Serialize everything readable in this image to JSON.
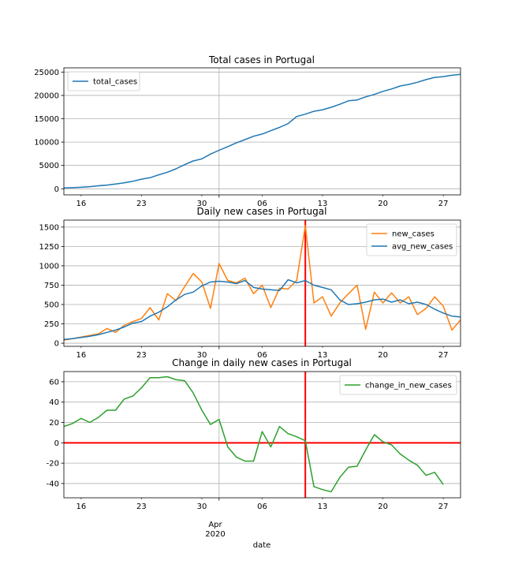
{
  "figure": {
    "xlabel": "date",
    "x_month_label": "Apr",
    "x_year_label": "2020"
  },
  "chart_data": [
    {
      "type": "line",
      "title": "Total cases in Portugal",
      "xlabel": "date",
      "ylabel": "",
      "x_range": [
        "2020-03-14",
        "2020-04-29"
      ],
      "ylim": [
        -1300,
        25900
      ],
      "yticks": [
        0,
        5000,
        10000,
        15000,
        20000,
        25000
      ],
      "xtick_labels": [
        "16",
        "23",
        "30",
        "06",
        "13",
        "20",
        "27"
      ],
      "grid": true,
      "legend": "top-left",
      "series": [
        {
          "name": "total_cases",
          "color": "#1f77b4",
          "x": [
            "2020-03-14",
            "2020-03-15",
            "2020-03-16",
            "2020-03-17",
            "2020-03-18",
            "2020-03-19",
            "2020-03-20",
            "2020-03-21",
            "2020-03-22",
            "2020-03-23",
            "2020-03-24",
            "2020-03-25",
            "2020-03-26",
            "2020-03-27",
            "2020-03-28",
            "2020-03-29",
            "2020-03-30",
            "2020-03-31",
            "2020-04-01",
            "2020-04-02",
            "2020-04-03",
            "2020-04-04",
            "2020-04-05",
            "2020-04-06",
            "2020-04-07",
            "2020-04-08",
            "2020-04-09",
            "2020-04-10",
            "2020-04-11",
            "2020-04-12",
            "2020-04-13",
            "2020-04-14",
            "2020-04-15",
            "2020-04-16",
            "2020-04-17",
            "2020-04-18",
            "2020-04-19",
            "2020-04-20",
            "2020-04-21",
            "2020-04-22",
            "2020-04-23",
            "2020-04-24",
            "2020-04-25",
            "2020-04-26",
            "2020-04-27",
            "2020-04-28",
            "2020-04-29"
          ],
          "values": [
            170,
            245,
            330,
            450,
            640,
            790,
            1020,
            1280,
            1600,
            2060,
            2360,
            2995,
            3545,
            4270,
            5170,
            5960,
            6410,
            7440,
            8250,
            9030,
            9840,
            10520,
            11260,
            11730,
            12440,
            13140,
            13950,
            15470,
            15990,
            16590,
            16930,
            17450,
            18090,
            18840,
            19020,
            19690,
            20200,
            20860,
            21380,
            22010,
            22350,
            22800,
            23390,
            23860,
            24030,
            24320,
            24510
          ]
        }
      ]
    },
    {
      "type": "line",
      "title": "Daily new cases in Portugal",
      "xlabel": "date",
      "ylabel": "",
      "x_range": [
        "2020-03-14",
        "2020-04-29"
      ],
      "ylim": [
        -40,
        1590
      ],
      "yticks": [
        0,
        250,
        500,
        750,
        1000,
        1250,
        1500
      ],
      "xtick_labels": [
        "16",
        "23",
        "30",
        "06",
        "13",
        "20",
        "27"
      ],
      "grid": true,
      "legend": "top-right",
      "vertical_marker": "2020-04-11",
      "series": [
        {
          "name": "new_cases",
          "color": "#ff7f0e",
          "x": [
            "2020-03-14",
            "2020-03-15",
            "2020-03-16",
            "2020-03-17",
            "2020-03-18",
            "2020-03-19",
            "2020-03-20",
            "2020-03-21",
            "2020-03-22",
            "2020-03-23",
            "2020-03-24",
            "2020-03-25",
            "2020-03-26",
            "2020-03-27",
            "2020-03-28",
            "2020-03-29",
            "2020-03-30",
            "2020-03-31",
            "2020-04-01",
            "2020-04-02",
            "2020-04-03",
            "2020-04-04",
            "2020-04-05",
            "2020-04-06",
            "2020-04-07",
            "2020-04-08",
            "2020-04-09",
            "2020-04-10",
            "2020-04-11",
            "2020-04-12",
            "2020-04-13",
            "2020-04-14",
            "2020-04-15",
            "2020-04-16",
            "2020-04-17",
            "2020-04-18",
            "2020-04-19",
            "2020-04-20",
            "2020-04-21",
            "2020-04-22",
            "2020-04-23",
            "2020-04-24",
            "2020-04-25",
            "2020-04-26",
            "2020-04-27",
            "2020-04-28",
            "2020-04-29"
          ],
          "values": [
            40,
            60,
            80,
            100,
            120,
            190,
            140,
            230,
            280,
            320,
            460,
            300,
            640,
            550,
            730,
            900,
            790,
            450,
            1030,
            810,
            780,
            840,
            640,
            750,
            460,
            710,
            700,
            810,
            1520,
            520,
            600,
            350,
            520,
            640,
            750,
            180,
            660,
            520,
            650,
            520,
            600,
            370,
            450,
            600,
            480,
            170,
            300
          ]
        },
        {
          "name": "avg_new_cases",
          "color": "#1f77b4",
          "x": [
            "2020-03-14",
            "2020-03-15",
            "2020-03-16",
            "2020-03-17",
            "2020-03-18",
            "2020-03-19",
            "2020-03-20",
            "2020-03-21",
            "2020-03-22",
            "2020-03-23",
            "2020-03-24",
            "2020-03-25",
            "2020-03-26",
            "2020-03-27",
            "2020-03-28",
            "2020-03-29",
            "2020-03-30",
            "2020-03-31",
            "2020-04-01",
            "2020-04-02",
            "2020-04-03",
            "2020-04-04",
            "2020-04-05",
            "2020-04-06",
            "2020-04-07",
            "2020-04-08",
            "2020-04-09",
            "2020-04-10",
            "2020-04-11",
            "2020-04-12",
            "2020-04-13",
            "2020-04-14",
            "2020-04-15",
            "2020-04-16",
            "2020-04-17",
            "2020-04-18",
            "2020-04-19",
            "2020-04-20",
            "2020-04-21",
            "2020-04-22",
            "2020-04-23",
            "2020-04-24",
            "2020-04-25",
            "2020-04-26",
            "2020-04-27",
            "2020-04-28",
            "2020-04-29"
          ],
          "values": [
            50,
            60,
            75,
            90,
            110,
            140,
            170,
            210,
            260,
            280,
            350,
            400,
            470,
            560,
            630,
            660,
            740,
            790,
            800,
            790,
            770,
            810,
            720,
            700,
            690,
            680,
            820,
            780,
            810,
            750,
            720,
            690,
            560,
            500,
            510,
            530,
            560,
            570,
            530,
            560,
            510,
            530,
            500,
            440,
            390,
            350,
            340
          ]
        }
      ]
    },
    {
      "type": "line",
      "title": "Change in daily new cases in Portugal",
      "xlabel": "date",
      "ylabel": "",
      "x_range": [
        "2020-03-14",
        "2020-04-29"
      ],
      "ylim": [
        -54,
        70
      ],
      "yticks": [
        -40,
        -20,
        0,
        20,
        40,
        60
      ],
      "xtick_labels": [
        "16",
        "23",
        "30",
        "06",
        "13",
        "20",
        "27"
      ],
      "grid": true,
      "legend": "top-right",
      "vertical_marker": "2020-04-11",
      "horizontal_marker": 0,
      "series": [
        {
          "name": "change_in_new_cases",
          "color": "#2ca02c",
          "x": [
            "2020-03-14",
            "2020-03-15",
            "2020-03-16",
            "2020-03-17",
            "2020-03-18",
            "2020-03-19",
            "2020-03-20",
            "2020-03-21",
            "2020-03-22",
            "2020-03-23",
            "2020-03-24",
            "2020-03-25",
            "2020-03-26",
            "2020-03-27",
            "2020-03-28",
            "2020-03-29",
            "2020-03-30",
            "2020-03-31",
            "2020-04-01",
            "2020-04-02",
            "2020-04-03",
            "2020-04-04",
            "2020-04-05",
            "2020-04-06",
            "2020-04-07",
            "2020-04-08",
            "2020-04-09",
            "2020-04-10",
            "2020-04-11",
            "2020-04-12",
            "2020-04-13",
            "2020-04-14",
            "2020-04-15",
            "2020-04-16",
            "2020-04-17",
            "2020-04-18",
            "2020-04-19",
            "2020-04-20",
            "2020-04-21",
            "2020-04-22",
            "2020-04-23",
            "2020-04-24",
            "2020-04-25",
            "2020-04-26",
            "2020-04-27"
          ],
          "values": [
            16,
            19,
            24,
            20,
            25,
            32,
            32,
            43,
            46,
            54,
            64,
            64,
            65,
            62,
            61,
            49,
            32,
            18,
            23,
            -4,
            -14,
            -18,
            -18,
            11,
            -4,
            16,
            9,
            6,
            2,
            -43,
            -46,
            -48,
            -34,
            -24,
            -23,
            -7,
            8,
            1,
            -2,
            -11,
            -17,
            -22,
            -32,
            -29,
            -41
          ]
        }
      ]
    }
  ]
}
